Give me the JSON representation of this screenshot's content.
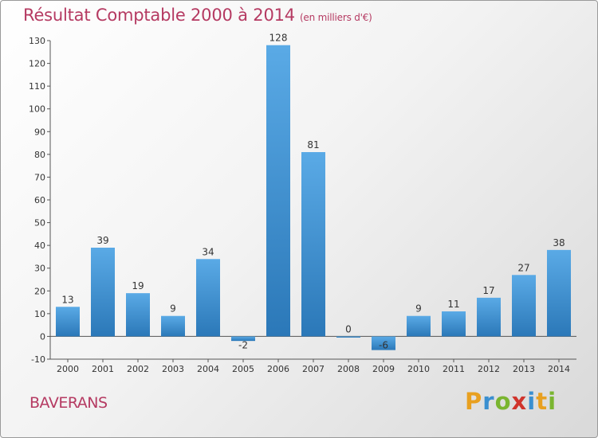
{
  "header": {
    "title": "Résultat Comptable 2000 à 2014",
    "subtitle": "(en milliers d'€)"
  },
  "commune": "BAVERANS",
  "logo": {
    "letters": [
      "P",
      "r",
      "o",
      "x",
      "i",
      "t",
      "i"
    ],
    "colors": [
      "#e8a020",
      "#3a8fd0",
      "#7ab530",
      "#d0342c",
      "#3a8fd0",
      "#e8a020",
      "#7ab530"
    ]
  },
  "chart_data": {
    "type": "bar",
    "categories": [
      "2000",
      "2001",
      "2002",
      "2003",
      "2004",
      "2005",
      "2006",
      "2007",
      "2008",
      "2009",
      "2010",
      "2011",
      "2012",
      "2013",
      "2014"
    ],
    "values": [
      13,
      39,
      19,
      9,
      34,
      -2,
      128,
      81,
      0,
      -6,
      9,
      11,
      17,
      27,
      38
    ],
    "title": "Résultat Comptable 2000 à 2014",
    "subtitle": "(en milliers d'€)",
    "ylim": [
      -10,
      130
    ],
    "yticks": [
      -10,
      0,
      10,
      20,
      30,
      40,
      50,
      60,
      70,
      80,
      90,
      100,
      110,
      120,
      130
    ],
    "grid": false,
    "colors": {
      "bar_light": "#5aaae6",
      "bar_dark": "#2b78b8",
      "axis": "#555555"
    }
  }
}
